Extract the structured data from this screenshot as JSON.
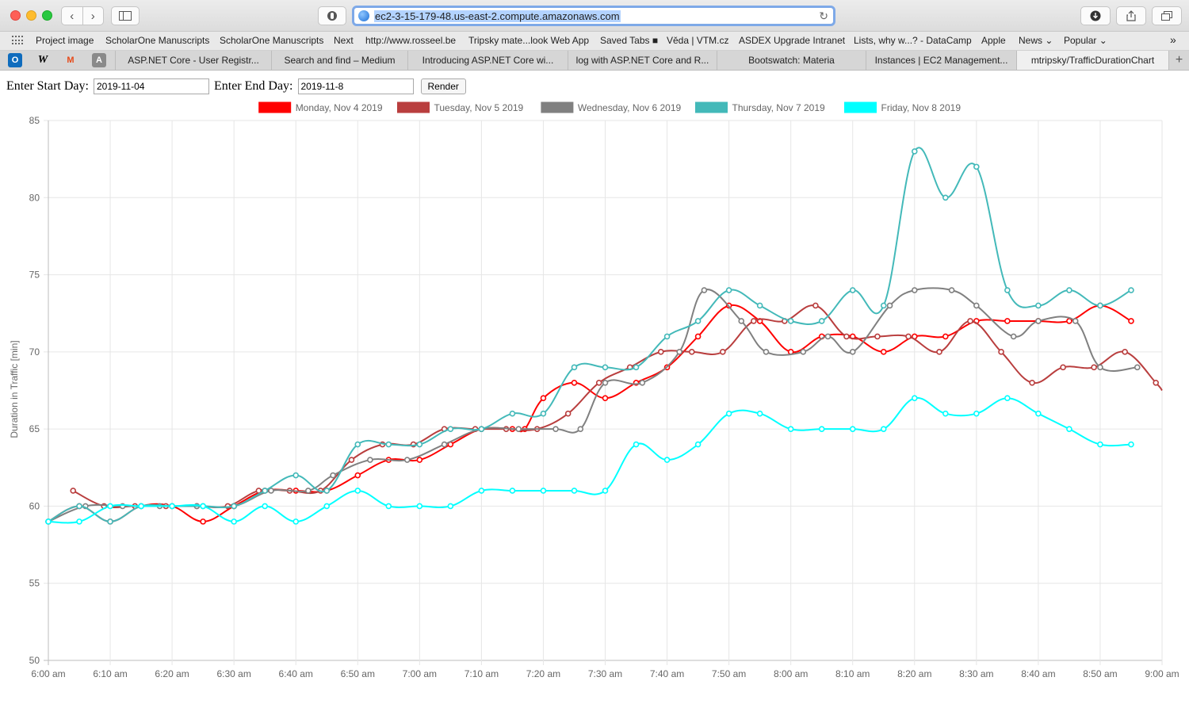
{
  "browser": {
    "url": "ec2-3-15-179-48.us-east-2.compute.amazonaws.com",
    "bookmarks": [
      "Project image",
      "ScholarOne Manuscripts",
      "ScholarOne Manuscripts",
      "Next",
      "http://www.rosseel.be",
      "Tripsky mate...look Web App",
      "Saved Tabs ■",
      "Věda | VTM.cz",
      "ASDEX Upgrade Intranet",
      "Lists, why w...? - DataCamp",
      "Apple",
      "News ⌄",
      "Popular ⌄"
    ],
    "bookmarks_overflow": "»",
    "pinned_tabs": [
      "O",
      "W",
      "M",
      "A"
    ],
    "tabs": [
      "ASP.NET Core - User Registr...",
      "Search and find – Medium",
      "Introducing ASP.NET Core wi...",
      "log with ASP.NET Core and R...",
      "Bootswatch: Materia",
      "Instances | EC2 Management...",
      "mtripsky/TrafficDurationChart"
    ],
    "new_tab": "+"
  },
  "form": {
    "start_label": "Enter Start Day:",
    "start_value": "2019-11-04",
    "end_label": "Enter End Day:",
    "end_value": "2019-11-8",
    "render_label": "Render"
  },
  "chart_data": {
    "type": "line",
    "title": "",
    "xlabel": "",
    "ylabel": "Duration in Traffic [min]",
    "ylim": [
      50,
      85
    ],
    "xlim": [
      "6:00 am",
      "9:00 am"
    ],
    "y_ticks": [
      "50",
      "55",
      "60",
      "65",
      "70",
      "75",
      "80",
      "85"
    ],
    "x_ticks": [
      "6:00 am",
      "6:10 am",
      "6:20 am",
      "6:30 am",
      "6:40 am",
      "6:50 am",
      "7:00 am",
      "7:10 am",
      "7:20 am",
      "7:30 am",
      "7:40 am",
      "7:50 am",
      "8:00 am",
      "8:10 am",
      "8:20 am",
      "8:30 am",
      "8:40 am",
      "8:50 am",
      "9:00 am"
    ],
    "grid": true,
    "legend_position": "top",
    "series": [
      {
        "name": "Monday, Nov 4 2019",
        "color": "#ff0000",
        "points": [
          [
            "6:00",
            59
          ],
          [
            "6:05",
            60
          ],
          [
            "6:10",
            59
          ],
          [
            "6:15",
            60
          ],
          [
            "6:20",
            60
          ],
          [
            "6:25",
            59
          ],
          [
            "6:30",
            60
          ],
          [
            "6:35",
            61
          ],
          [
            "6:40",
            61
          ],
          [
            "6:45",
            61
          ],
          [
            "6:50",
            62
          ],
          [
            "6:55",
            63
          ],
          [
            "7:00",
            63
          ],
          [
            "7:05",
            64
          ],
          [
            "7:10",
            65
          ],
          [
            "7:15",
            65
          ],
          [
            "7:17",
            65
          ],
          [
            "7:20",
            67
          ],
          [
            "7:25",
            68
          ],
          [
            "7:30",
            67
          ],
          [
            "7:35",
            68
          ],
          [
            "7:40",
            69
          ],
          [
            "7:45",
            71
          ],
          [
            "7:50",
            73
          ],
          [
            "7:55",
            72
          ],
          [
            "8:00",
            70
          ],
          [
            "8:05",
            71
          ],
          [
            "8:10",
            71
          ],
          [
            "8:15",
            70
          ],
          [
            "8:20",
            71
          ],
          [
            "8:25",
            71
          ],
          [
            "8:30",
            72
          ],
          [
            "8:35",
            72
          ],
          [
            "8:40",
            72
          ],
          [
            "8:45",
            72
          ],
          [
            "8:50",
            73
          ],
          [
            "8:55",
            72
          ]
        ]
      },
      {
        "name": "Tuesday, Nov 5 2019",
        "color": "#b93e3e",
        "points": [
          [
            "6:04",
            61
          ],
          [
            "6:09",
            60
          ],
          [
            "6:14",
            60
          ],
          [
            "6:19",
            60
          ],
          [
            "6:24",
            60
          ],
          [
            "6:29",
            60
          ],
          [
            "6:34",
            61
          ],
          [
            "6:39",
            61
          ],
          [
            "6:44",
            61
          ],
          [
            "6:49",
            63
          ],
          [
            "6:54",
            64
          ],
          [
            "6:59",
            64
          ],
          [
            "7:04",
            65
          ],
          [
            "7:09",
            65
          ],
          [
            "7:14",
            65
          ],
          [
            "7:19",
            65
          ],
          [
            "7:24",
            66
          ],
          [
            "7:29",
            68
          ],
          [
            "7:34",
            69
          ],
          [
            "7:39",
            70
          ],
          [
            "7:44",
            70
          ],
          [
            "7:49",
            70
          ],
          [
            "7:54",
            72
          ],
          [
            "7:59",
            72
          ],
          [
            "8:04",
            73
          ],
          [
            "8:09",
            71
          ],
          [
            "8:14",
            71
          ],
          [
            "8:19",
            71
          ],
          [
            "8:24",
            70
          ],
          [
            "8:29",
            72
          ],
          [
            "8:34",
            70
          ],
          [
            "8:39",
            68
          ],
          [
            "8:44",
            69
          ],
          [
            "8:49",
            69
          ],
          [
            "8:54",
            70
          ],
          [
            "8:59",
            68
          ],
          [
            "9:00",
            67.5
          ]
        ]
      },
      {
        "name": "Wednesday, Nov 6 2019",
        "color": "#808080",
        "points": [
          [
            "6:00",
            59
          ],
          [
            "6:06",
            60
          ],
          [
            "6:12",
            60
          ],
          [
            "6:18",
            60
          ],
          [
            "6:24",
            60
          ],
          [
            "6:30",
            60
          ],
          [
            "6:36",
            61
          ],
          [
            "6:42",
            61
          ],
          [
            "6:46",
            62
          ],
          [
            "6:52",
            63
          ],
          [
            "6:58",
            63
          ],
          [
            "7:04",
            64
          ],
          [
            "7:10",
            65
          ],
          [
            "7:16",
            65
          ],
          [
            "7:22",
            65
          ],
          [
            "7:26",
            65
          ],
          [
            "7:30",
            68
          ],
          [
            "7:36",
            68
          ],
          [
            "7:42",
            70
          ],
          [
            "7:46",
            74
          ],
          [
            "7:52",
            72
          ],
          [
            "7:56",
            70
          ],
          [
            "8:02",
            70
          ],
          [
            "8:06",
            71
          ],
          [
            "8:10",
            70
          ],
          [
            "8:16",
            73
          ],
          [
            "8:20",
            74
          ],
          [
            "8:26",
            74
          ],
          [
            "8:30",
            73
          ],
          [
            "8:36",
            71
          ],
          [
            "8:40",
            72
          ],
          [
            "8:46",
            72
          ],
          [
            "8:50",
            69
          ],
          [
            "8:56",
            69
          ]
        ]
      },
      {
        "name": "Thursday, Nov 7 2019",
        "color": "#43b9b9",
        "points": [
          [
            "6:00",
            59
          ],
          [
            "6:05",
            60
          ],
          [
            "6:10",
            59
          ],
          [
            "6:15",
            60
          ],
          [
            "6:20",
            60
          ],
          [
            "6:25",
            60
          ],
          [
            "6:30",
            60
          ],
          [
            "6:35",
            61
          ],
          [
            "6:40",
            62
          ],
          [
            "6:45",
            61
          ],
          [
            "6:50",
            64
          ],
          [
            "6:55",
            64
          ],
          [
            "7:00",
            64
          ],
          [
            "7:05",
            65
          ],
          [
            "7:10",
            65
          ],
          [
            "7:15",
            66
          ],
          [
            "7:20",
            66
          ],
          [
            "7:25",
            69
          ],
          [
            "7:30",
            69
          ],
          [
            "7:35",
            69
          ],
          [
            "7:40",
            71
          ],
          [
            "7:45",
            72
          ],
          [
            "7:50",
            74
          ],
          [
            "7:55",
            73
          ],
          [
            "8:00",
            72
          ],
          [
            "8:05",
            72
          ],
          [
            "8:10",
            74
          ],
          [
            "8:15",
            73
          ],
          [
            "8:20",
            83
          ],
          [
            "8:25",
            80
          ],
          [
            "8:30",
            82
          ],
          [
            "8:35",
            74
          ],
          [
            "8:40",
            73
          ],
          [
            "8:45",
            74
          ],
          [
            "8:50",
            73
          ],
          [
            "8:55",
            74
          ]
        ]
      },
      {
        "name": "Friday, Nov 8 2019",
        "color": "#00ffff",
        "points": [
          [
            "6:00",
            59
          ],
          [
            "6:05",
            59
          ],
          [
            "6:10",
            60
          ],
          [
            "6:15",
            60
          ],
          [
            "6:20",
            60
          ],
          [
            "6:25",
            60
          ],
          [
            "6:30",
            59
          ],
          [
            "6:35",
            60
          ],
          [
            "6:40",
            59
          ],
          [
            "6:45",
            60
          ],
          [
            "6:50",
            61
          ],
          [
            "6:55",
            60
          ],
          [
            "7:00",
            60
          ],
          [
            "7:05",
            60
          ],
          [
            "7:10",
            61
          ],
          [
            "7:15",
            61
          ],
          [
            "7:20",
            61
          ],
          [
            "7:25",
            61
          ],
          [
            "7:30",
            61
          ],
          [
            "7:35",
            64
          ],
          [
            "7:40",
            63
          ],
          [
            "7:45",
            64
          ],
          [
            "7:50",
            66
          ],
          [
            "7:55",
            66
          ],
          [
            "8:00",
            65
          ],
          [
            "8:05",
            65
          ],
          [
            "8:10",
            65
          ],
          [
            "8:15",
            65
          ],
          [
            "8:20",
            67
          ],
          [
            "8:25",
            66
          ],
          [
            "8:30",
            66
          ],
          [
            "8:35",
            67
          ],
          [
            "8:40",
            66
          ],
          [
            "8:45",
            65
          ],
          [
            "8:50",
            64
          ],
          [
            "8:55",
            64
          ]
        ]
      }
    ]
  }
}
